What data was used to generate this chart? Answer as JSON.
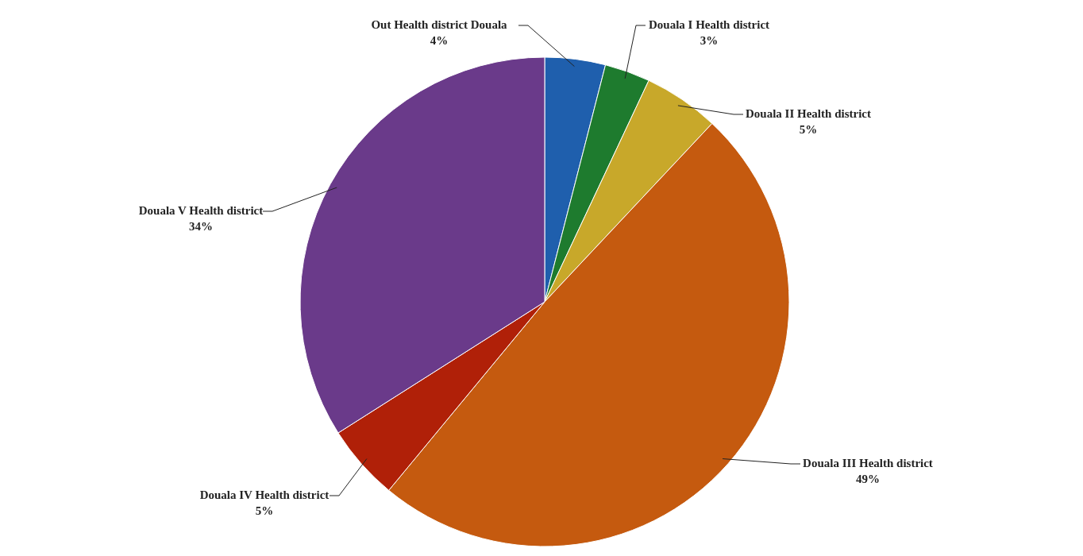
{
  "chart_data": {
    "type": "pie",
    "categories": [
      "Out Health district Douala",
      "Douala I Health district",
      "Douala II Health district",
      "Douala III Health district",
      "Douala IV Health district",
      "Douala V Health district"
    ],
    "values": [
      4,
      3,
      5,
      49,
      5,
      34
    ],
    "colors": [
      "#1f5fad",
      "#1e7b2e",
      "#c8a82a",
      "#c55a0f",
      "#b02008",
      "#6a3a8a"
    ],
    "value_labels": [
      "4%",
      "3%",
      "5%",
      "49%",
      "5%",
      "34%"
    ]
  }
}
